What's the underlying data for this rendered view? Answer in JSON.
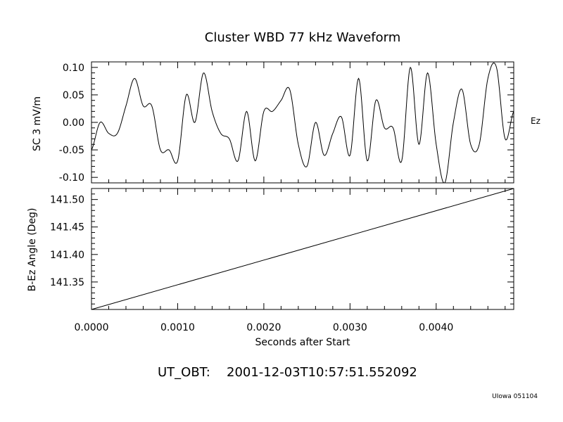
{
  "title": "Cluster WBD 77 kHz Waveform",
  "channel_label": "Ez",
  "ut_label": "UT_OBT:",
  "ut_value": "2001-12-03T10:57:51.552092",
  "credit": "UIowa 051104",
  "chart_data": [
    {
      "type": "line",
      "ylabel": "SC 3 mV/m",
      "xlim": [
        0.0,
        0.0049
      ],
      "ylim": [
        -0.11,
        0.11
      ],
      "yticks": [
        0.1,
        0.05,
        0.0,
        -0.05,
        -0.1
      ],
      "ytick_labels": [
        "0.10",
        "0.05",
        "0.00",
        "-0.05",
        "-0.10"
      ],
      "series": [
        {
          "x": [
            0.0,
            0.0001,
            0.0002,
            0.0003,
            0.0004,
            0.0005,
            0.0006,
            0.0007,
            0.0008,
            0.0009,
            0.001,
            0.0011,
            0.0012,
            0.0013,
            0.0014,
            0.0015,
            0.0016,
            0.0017,
            0.0018,
            0.0019,
            0.002,
            0.0021,
            0.0022,
            0.0023,
            0.0024,
            0.0025,
            0.0026,
            0.0027,
            0.0028,
            0.0029,
            0.003,
            0.0031,
            0.0032,
            0.0033,
            0.0034,
            0.0035,
            0.0036,
            0.0037,
            0.0038,
            0.0039,
            0.004,
            0.0041,
            0.0042,
            0.0043,
            0.0044,
            0.0045,
            0.0046,
            0.0047,
            0.0048,
            0.0049
          ],
          "values": [
            -0.05,
            0.0,
            -0.02,
            -0.02,
            0.03,
            0.08,
            0.03,
            0.03,
            -0.05,
            -0.05,
            -0.07,
            0.05,
            0.0,
            0.09,
            0.02,
            -0.02,
            -0.03,
            -0.07,
            0.02,
            -0.07,
            0.02,
            0.02,
            0.04,
            0.06,
            -0.04,
            -0.08,
            0.0,
            -0.06,
            -0.02,
            0.01,
            -0.06,
            0.08,
            -0.07,
            0.04,
            -0.01,
            -0.01,
            -0.07,
            0.1,
            -0.04,
            0.09,
            -0.04,
            -0.11,
            0.0,
            0.06,
            -0.04,
            -0.04,
            0.08,
            0.1,
            -0.03,
            0.02
          ]
        }
      ]
    },
    {
      "type": "line",
      "ylabel": "B-Ez Angle (Deg)",
      "xlabel": "Seconds after Start",
      "xlim": [
        0.0,
        0.0049
      ],
      "ylim": [
        141.3,
        141.52
      ],
      "yticks": [
        141.5,
        141.45,
        141.4,
        141.35
      ],
      "ytick_labels": [
        "141.50",
        "141.45",
        "141.40",
        "141.35"
      ],
      "xticks": [
        0.0,
        0.001,
        0.002,
        0.003,
        0.004
      ],
      "xtick_labels": [
        "0.0000",
        "0.0010",
        "0.0020",
        "0.0030",
        "0.0040"
      ],
      "series": [
        {
          "x": [
            0.0,
            0.0049
          ],
          "values": [
            141.3,
            141.52
          ]
        }
      ]
    }
  ]
}
